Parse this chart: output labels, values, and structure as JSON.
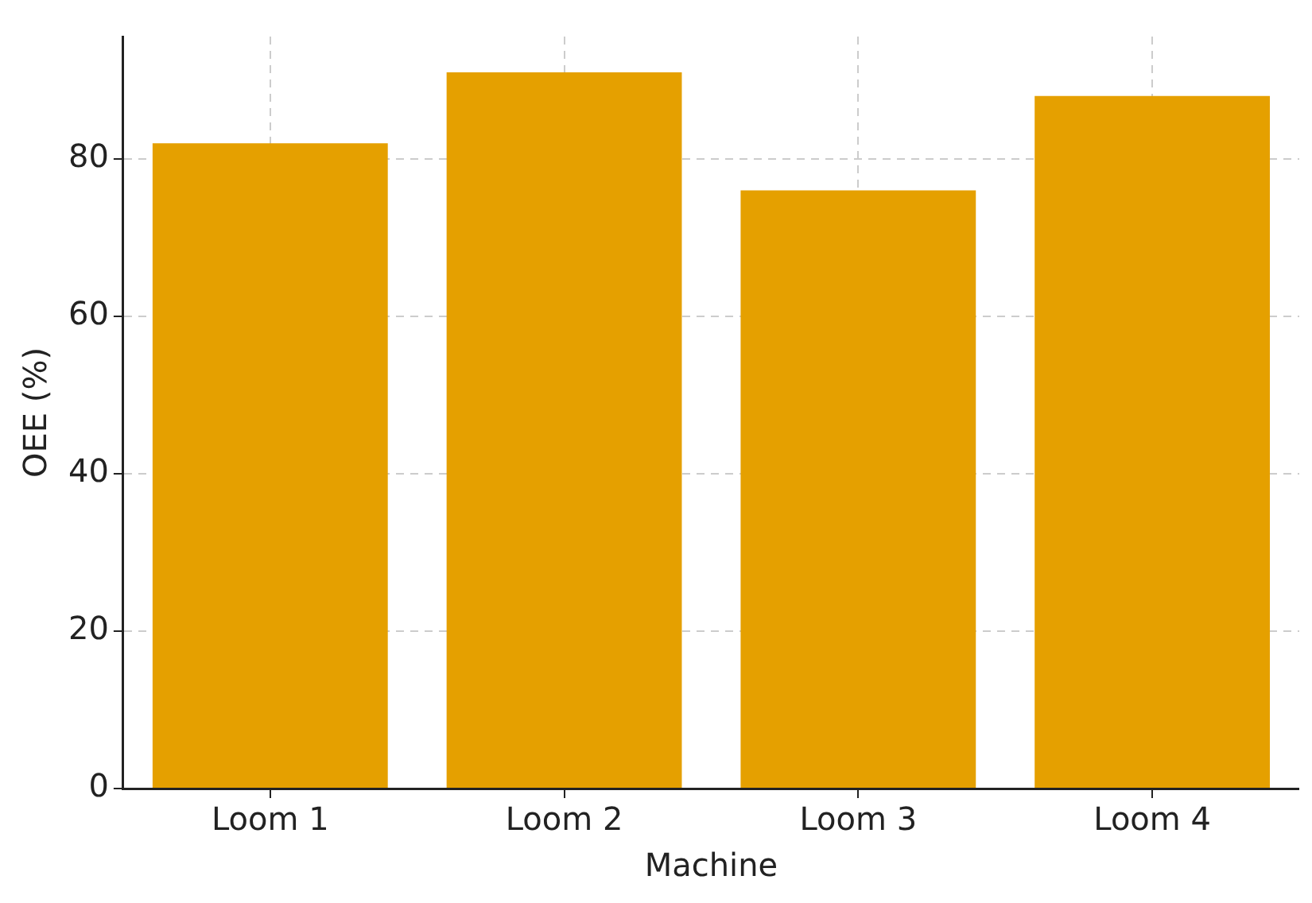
{
  "chart_data": {
    "type": "bar",
    "xlabel": "Machine",
    "ylabel": "OEE (%)",
    "categories": [
      "Loom 1",
      "Loom 2",
      "Loom 3",
      "Loom 4"
    ],
    "values": [
      82,
      91,
      76,
      88
    ],
    "color": "#e5a000",
    "ylim": [
      0,
      95.55
    ],
    "yticks": [
      0,
      20,
      40,
      60,
      80
    ],
    "grid": true
  }
}
